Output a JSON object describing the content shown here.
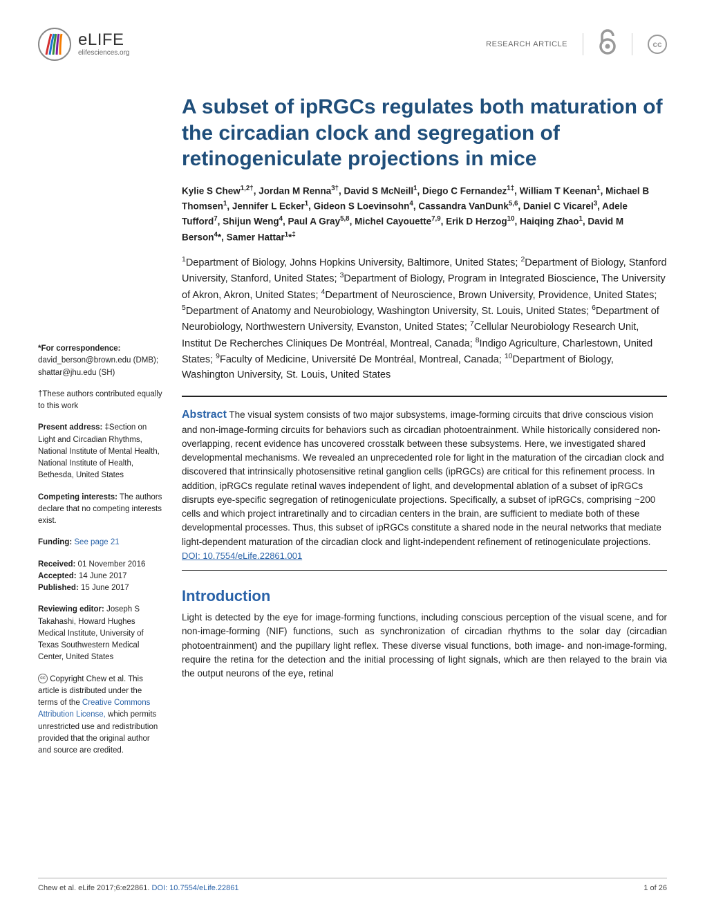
{
  "header": {
    "logo_text": "eLIFE",
    "logo_subtext": "elifesciences.org",
    "article_type": "RESEARCH ARTICLE",
    "oa_glyph": "8",
    "cc_text": "cc"
  },
  "title": "A subset of ipRGCs regulates both maturation of the circadian clock and segregation of retinogeniculate projections in mice",
  "authors_html": "Kylie S Chew<sup>1,2†</sup>, Jordan M Renna<sup>3†</sup>, David S McNeill<sup>1</sup>, Diego C Fernandez<sup>1‡</sup>, William T Keenan<sup>1</sup>, Michael B Thomsen<sup>1</sup>, Jennifer L Ecker<sup>1</sup>, Gideon S Loevinsohn<sup>4</sup>, Cassandra VanDunk<sup>5,6</sup>, Daniel C Vicarel<sup>3</sup>, Adele Tufford<sup>7</sup>, Shijun Weng<sup>4</sup>, Paul A Gray<sup>5,8</sup>, Michel Cayouette<sup>7,9</sup>, Erik D Herzog<sup>10</sup>, Haiqing Zhao<sup>1</sup>, David M Berson<sup>4</sup>*, Samer Hattar<sup>1</sup>*<sup>‡</sup>",
  "affiliations_html": "<sup>1</sup>Department of Biology, Johns Hopkins University, Baltimore, United States; <sup>2</sup>Department of Biology, Stanford University, Stanford, United States; <sup>3</sup>Department of Biology, Program in Integrated Bioscience, The University of Akron, Akron, United States; <sup>4</sup>Department of Neuroscience, Brown University, Providence, United States; <sup>5</sup>Department of Anatomy and Neurobiology, Washington University, St. Louis, United States; <sup>6</sup>Department of Neurobiology, Northwestern University, Evanston, United States; <sup>7</sup>Cellular Neurobiology Research Unit, Institut De Recherches Cliniques De Montréal, Montreal, Canada; <sup>8</sup>Indigo Agriculture, Charlestown, United States; <sup>9</sup>Faculty of Medicine, Université De Montréal, Montreal, Canada; <sup>10</sup>Department of Biology, Washington University, St. Louis, United States",
  "sidebar": {
    "correspondence_label": "*For correspondence:",
    "correspondence_text": "david_berson@brown.edu (DMB); shattar@jhu.edu (SH)",
    "contrib_text": "†These authors contributed equally to this work",
    "present_label": "Present address:",
    "present_text": "‡Section on Light and Circadian Rhythms, National Institute of Mental Health, National Institute of Health, Bethesda, United States",
    "competing_label": "Competing interests:",
    "competing_text": "The authors declare that no competing interests exist.",
    "funding_label": "Funding:",
    "funding_link": "See page 21",
    "received_label": "Received:",
    "received_text": "01 November 2016",
    "accepted_label": "Accepted:",
    "accepted_text": "14 June 2017",
    "published_label": "Published:",
    "published_text": "15 June 2017",
    "reviewing_label": "Reviewing editor:",
    "reviewing_text": "Joseph S Takahashi, Howard Hughes Medical Institute, University of Texas Southwestern Medical Center, United States",
    "copyright_prefix": "Copyright Chew et al. This article is distributed under the terms of the ",
    "copyright_link": "Creative Commons Attribution License,",
    "copyright_suffix": " which permits unrestricted use and redistribution provided that the original author and source are credited."
  },
  "abstract": {
    "label": "Abstract",
    "body": "The visual system consists of two major subsystems, image-forming circuits that drive conscious vision and non-image-forming circuits for behaviors such as circadian photoentrainment. While historically considered non-overlapping, recent evidence has uncovered crosstalk between these subsystems. Here, we investigated shared developmental mechanisms. We revealed an unprecedented role for light in the maturation of the circadian clock and discovered that intrinsically photosensitive retinal ganglion cells (ipRGCs) are critical for this refinement process. In addition, ipRGCs regulate retinal waves independent of light, and developmental ablation of a subset of ipRGCs disrupts eye-specific segregation of retinogeniculate projections. Specifically, a subset of ipRGCs, comprising ~200 cells and which project intraretinally and to circadian centers in the brain, are sufficient to mediate both of these developmental processes. Thus, this subset of ipRGCs constitute a shared node in the neural networks that mediate light-dependent maturation of the circadian clock and light-independent refinement of retinogeniculate projections.",
    "doi": "DOI: 10.7554/eLife.22861.001"
  },
  "introduction": {
    "heading": "Introduction",
    "body": "Light is detected by the eye for image-forming functions, including conscious perception of the visual scene, and for non-image-forming (NIF) functions, such as synchronization of circadian rhythms to the solar day (circadian photoentrainment) and the pupillary light reflex. These diverse visual functions, both image- and non-image-forming, require the retina for the detection and the initial processing of light signals, which are then relayed to the brain via the output neurons of the eye, retinal"
  },
  "footer": {
    "citation": "Chew et al. eLife 2017;6:e22861. ",
    "doi_link": "DOI: 10.7554/eLife.22861",
    "page": "1 of 26"
  },
  "colors": {
    "title_color": "#1f4e7a",
    "link_color": "#2962a8",
    "text_color": "#212121"
  }
}
